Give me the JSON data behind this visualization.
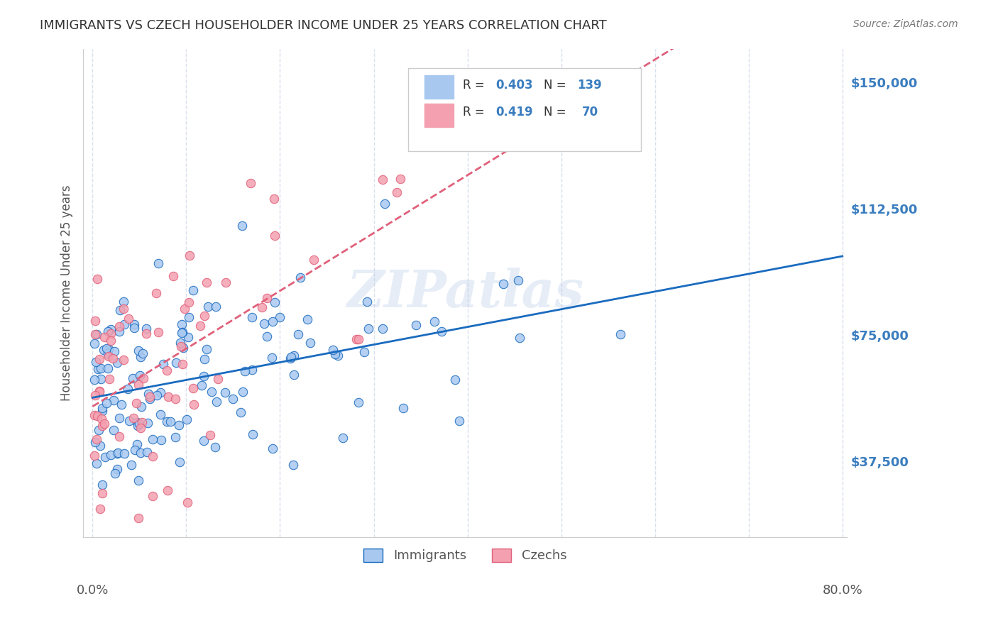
{
  "title": "IMMIGRANTS VS CZECH HOUSEHOLDER INCOME UNDER 25 YEARS CORRELATION CHART",
  "source": "Source: ZipAtlas.com",
  "ylabel": "Householder Income Under 25 years",
  "ytick_labels": [
    "$37,500",
    "$75,000",
    "$112,500",
    "$150,000"
  ],
  "ytick_values": [
    37500,
    75000,
    112500,
    150000
  ],
  "ymin": 15000,
  "ymax": 160000,
  "xmin": 0.0,
  "xmax": 0.8,
  "immigrants_color": "#a8c8f0",
  "czechs_color": "#f4a0b0",
  "immigrants_line_color": "#1a6bbf",
  "czechs_line_color": "#e0607a",
  "watermark": "ZIPatlas",
  "background_color": "#ffffff",
  "grid_color": "#d0d8e8",
  "title_color": "#333333",
  "axis_label_color": "#555555",
  "ytick_color": "#3a7dbf",
  "xtick_color": "#555555",
  "imm_R": 0.403,
  "imm_N": 139,
  "czk_R": 0.419,
  "czk_N": 70,
  "legend_label_immigrants": "Immigrants",
  "legend_label_czechs": "Czechs"
}
